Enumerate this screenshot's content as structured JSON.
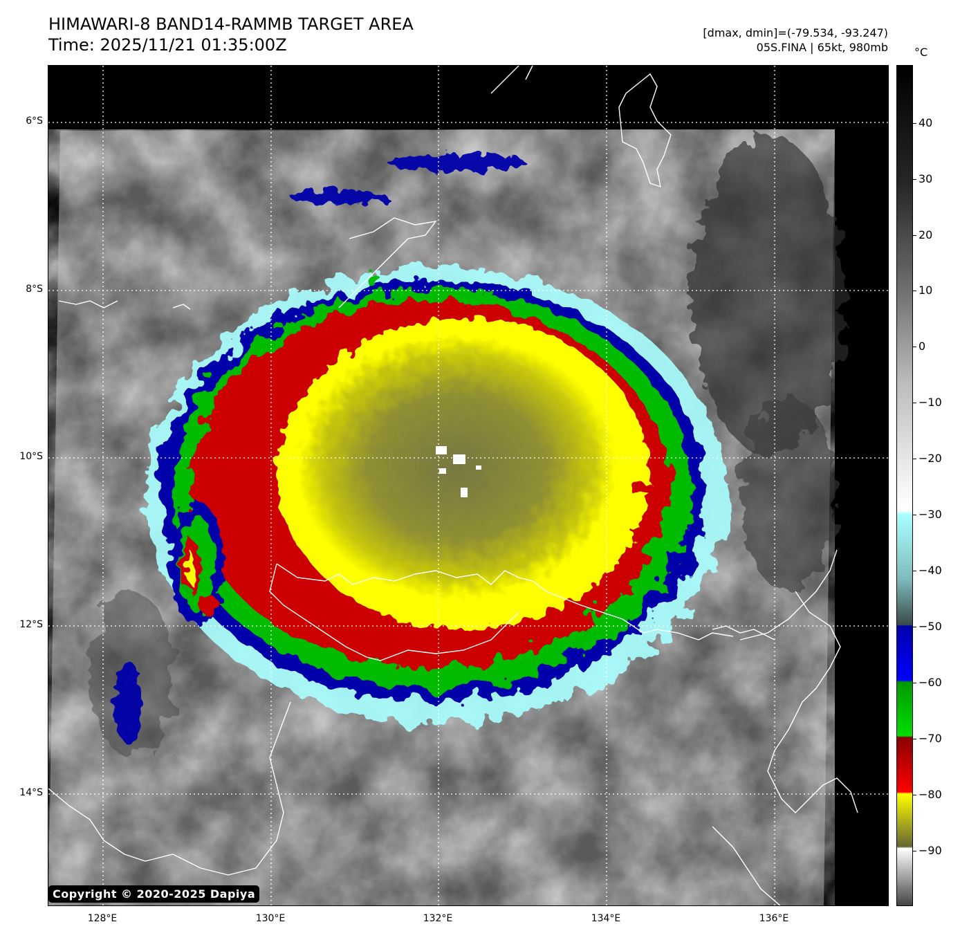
{
  "title": {
    "line1": "HIMAWARI-8 BAND14-RAMMB TARGET AREA",
    "line2": "Time: 2025/11/21 01:35:00Z"
  },
  "info": {
    "line1": "[dmax, dmin]=(-79.534, -93.247)",
    "line2": "05S.FINA | 65kt, 980mb"
  },
  "axes": {
    "lat_labels": [
      "6°S",
      "8°S",
      "10°S",
      "12°S",
      "14°S"
    ],
    "lon_labels": [
      "128°E",
      "130°E",
      "132°E",
      "134°E",
      "136°E"
    ]
  },
  "colorbar": {
    "unit": "°C",
    "labels": [
      "40",
      "30",
      "20",
      "10",
      "0",
      "−10",
      "−20",
      "−30",
      "−40",
      "−50",
      "−60",
      "−70",
      "−80",
      "−90"
    ],
    "colors": {
      "black_warm": "#000000",
      "white": "#ffffff",
      "cyan": "#aaffff",
      "grey_cold": "#333333",
      "blue": "#0000aa",
      "blue_bright": "#0000ff",
      "green": "#00bb00",
      "red": "#cc0000",
      "yellow": "#ffff00",
      "olive": "#666633"
    }
  },
  "storm": {
    "name": "05S.FINA",
    "center_lon": 132.1,
    "center_lat": -10.0
  },
  "copyright": "Copyright © 2020-2025 Dapiya"
}
